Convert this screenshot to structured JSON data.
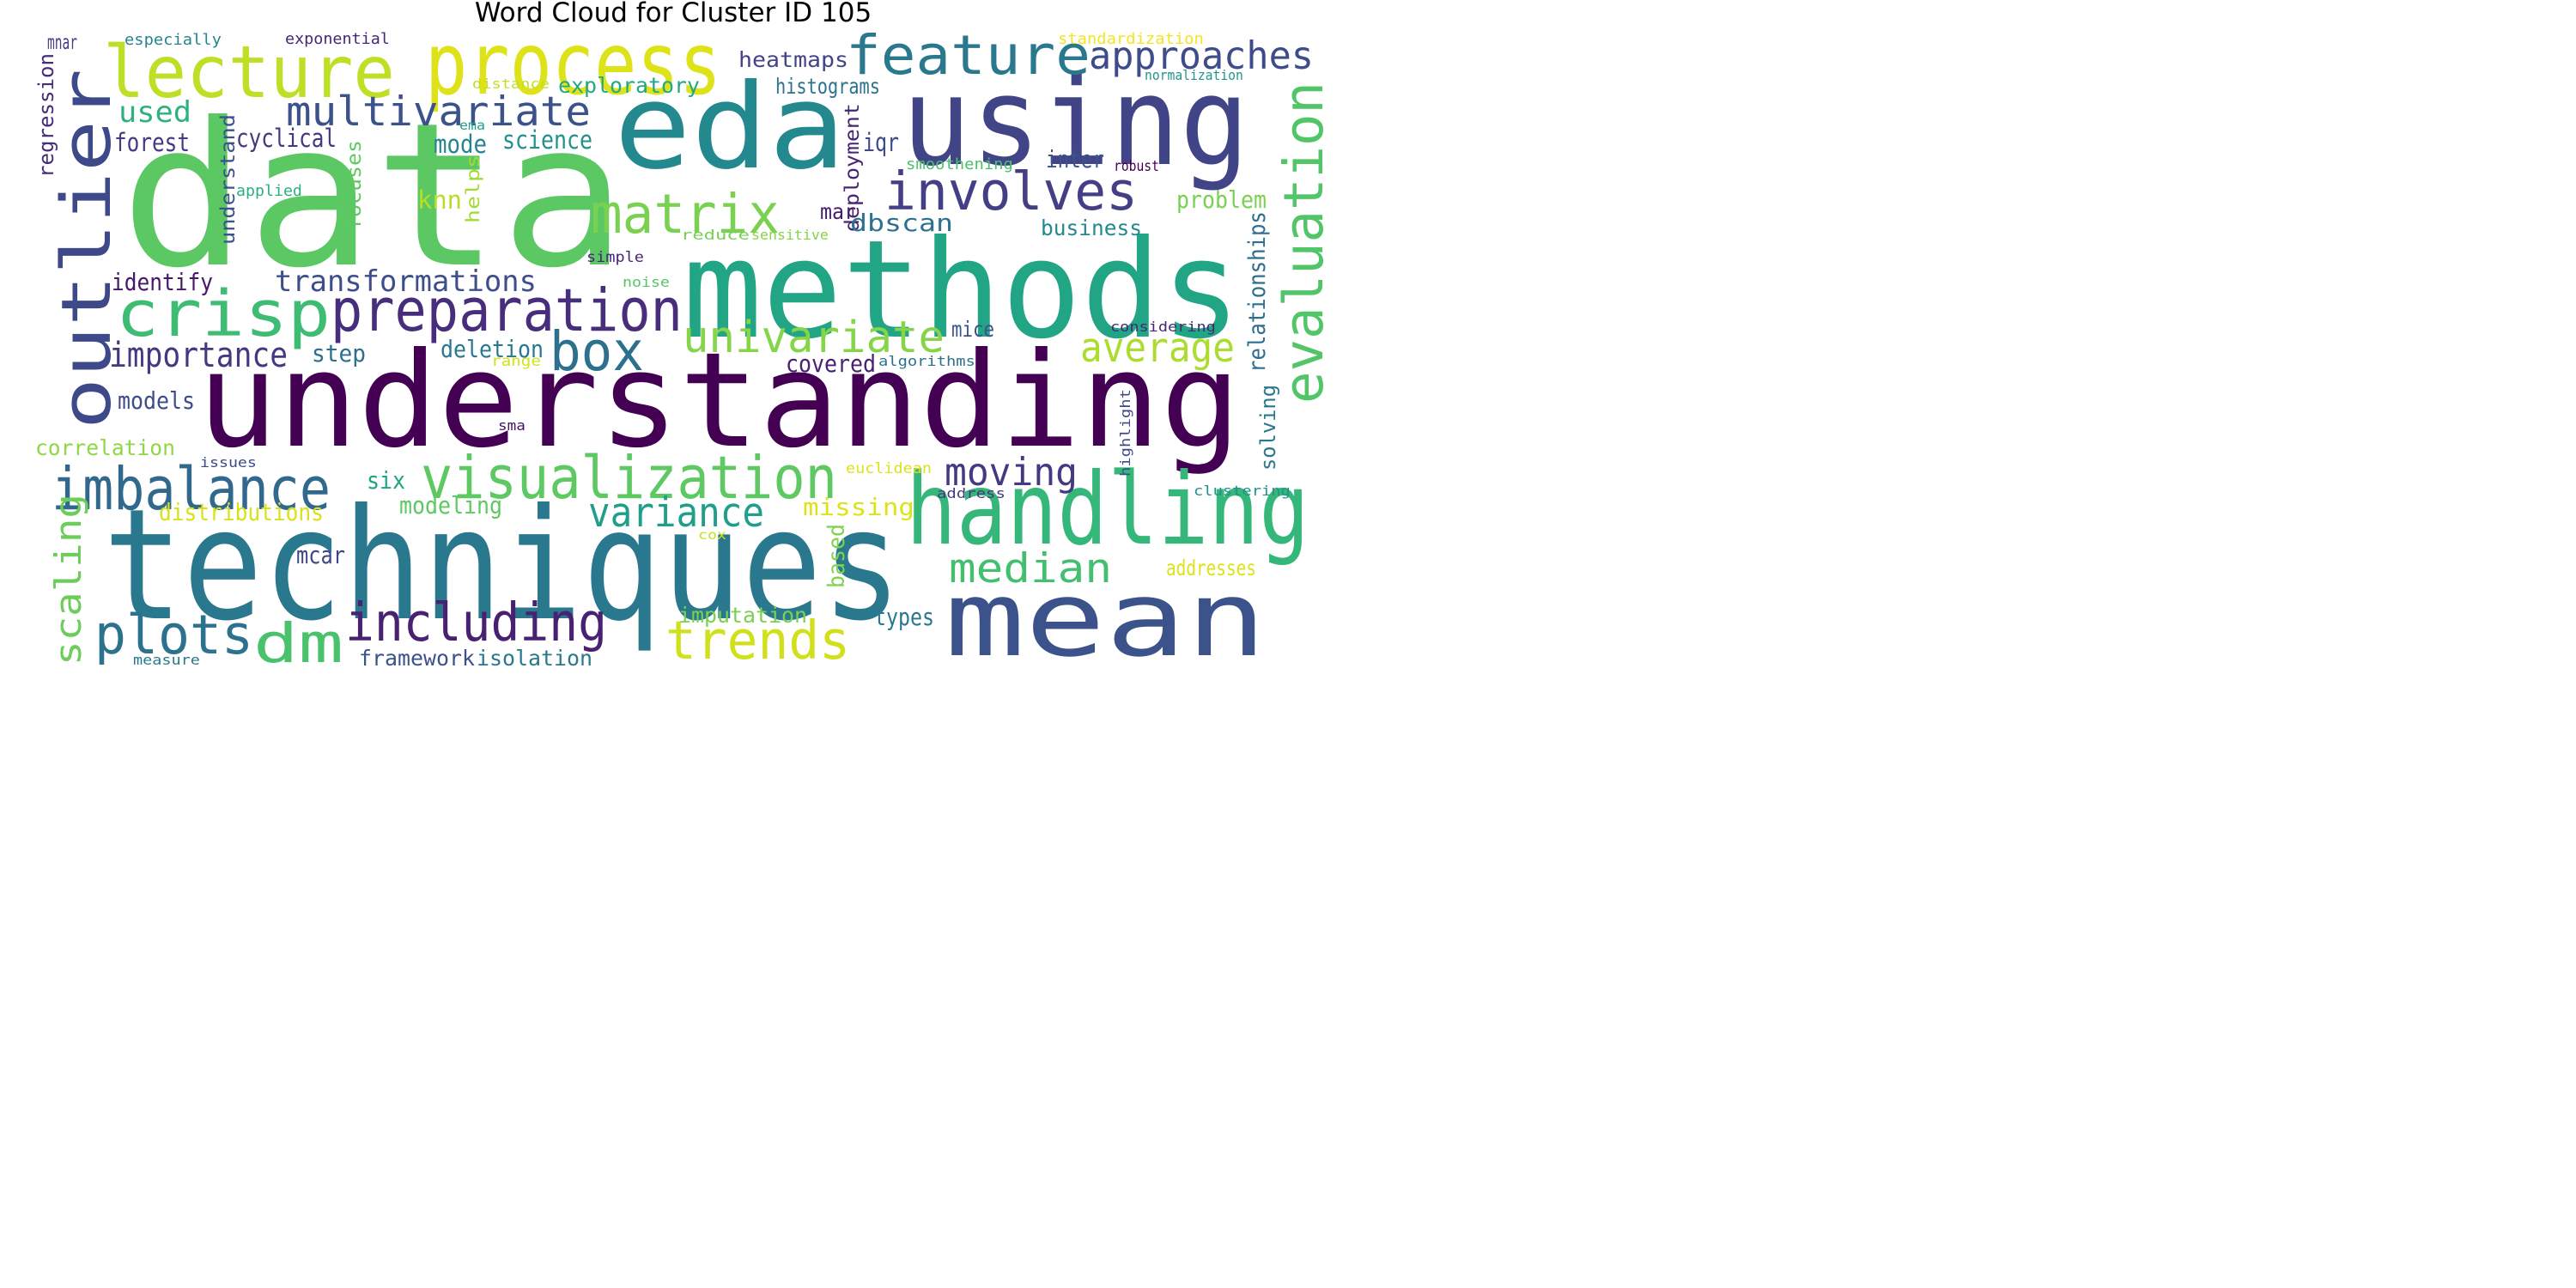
{
  "title": "Word Cloud for Cluster ID 105",
  "words": [
    {
      "text": "data",
      "color": "#5cc863"
    },
    {
      "text": "understanding",
      "color": "#440154"
    },
    {
      "text": "techniques",
      "color": "#2a788e"
    },
    {
      "text": "methods",
      "color": "#21a585"
    },
    {
      "text": "eda",
      "color": "#23898e"
    },
    {
      "text": "using",
      "color": "#414487"
    },
    {
      "text": "mean",
      "color": "#3b528b"
    },
    {
      "text": "outlier",
      "color": "#3e4989"
    },
    {
      "text": "handling",
      "color": "#35b779"
    },
    {
      "text": "process",
      "color": "#dde318"
    },
    {
      "text": "lecture",
      "color": "#bddf26"
    },
    {
      "text": "visualization",
      "color": "#5ec962"
    },
    {
      "text": "preparation",
      "color": "#472d7b"
    },
    {
      "text": "crisp",
      "color": "#3fbc73"
    },
    {
      "text": "evaluation",
      "color": "#52c569"
    },
    {
      "text": "imbalance",
      "color": "#31688e"
    },
    {
      "text": "including",
      "color": "#482173"
    },
    {
      "text": "feature",
      "color": "#2a788e"
    },
    {
      "text": "matrix",
      "color": "#7ad151"
    },
    {
      "text": "trends",
      "color": "#d0e11c"
    },
    {
      "text": "plots",
      "color": "#2c728e"
    },
    {
      "text": "dm",
      "color": "#4ac16d"
    },
    {
      "text": "involves",
      "color": "#433e85"
    },
    {
      "text": "univariate",
      "color": "#86d549"
    },
    {
      "text": "box",
      "color": "#2d708e"
    },
    {
      "text": "multivariate",
      "color": "#3b528b"
    },
    {
      "text": "approaches",
      "color": "#3e4c8a"
    },
    {
      "text": "median",
      "color": "#44bf70"
    },
    {
      "text": "variance",
      "color": "#1f9e89"
    },
    {
      "text": "average",
      "color": "#addc30"
    },
    {
      "text": "moving",
      "color": "#443983"
    },
    {
      "text": "scaling",
      "color": "#6ccd5a"
    },
    {
      "text": "transformations",
      "color": "#3d4e8a"
    },
    {
      "text": "importance",
      "color": "#453781"
    },
    {
      "text": "exploratory",
      "color": "#22a884"
    },
    {
      "text": "used",
      "color": "#2db27d"
    },
    {
      "text": "histograms",
      "color": "#2c728e"
    },
    {
      "text": "heatmaps",
      "color": "#414487"
    },
    {
      "text": "deployment",
      "color": "#482475"
    },
    {
      "text": "relationships",
      "color": "#2e6f8e"
    },
    {
      "text": "regression",
      "color": "#472c7a"
    },
    {
      "text": "understand",
      "color": "#3b528b"
    },
    {
      "text": "focuses",
      "color": "#5ec962"
    },
    {
      "text": "helps",
      "color": "#a2da37"
    },
    {
      "text": "cyclical",
      "color": "#453781"
    },
    {
      "text": "forest",
      "color": "#443983"
    },
    {
      "text": "mode",
      "color": "#25848e"
    },
    {
      "text": "science",
      "color": "#21918c"
    },
    {
      "text": "knn",
      "color": "#b5de2b"
    },
    {
      "text": "identify",
      "color": "#481769"
    },
    {
      "text": "step",
      "color": "#2d708e"
    },
    {
      "text": "deletion",
      "color": "#29798e"
    },
    {
      "text": "covered",
      "color": "#482173"
    },
    {
      "text": "dbscan",
      "color": "#2c728e"
    },
    {
      "text": "business",
      "color": "#23898e"
    },
    {
      "text": "problem",
      "color": "#7ad151"
    },
    {
      "text": "inter",
      "color": "#3b528b"
    },
    {
      "text": "iqr",
      "color": "#3e4989"
    },
    {
      "text": "mar",
      "color": "#481b6d"
    },
    {
      "text": "mice",
      "color": "#3b528b"
    },
    {
      "text": "solving",
      "color": "#2a788e"
    },
    {
      "text": "models",
      "color": "#3e4c8a"
    },
    {
      "text": "correlation",
      "color": "#8fd744"
    },
    {
      "text": "six",
      "color": "#20a386"
    },
    {
      "text": "distributions",
      "color": "#d8e219"
    },
    {
      "text": "modeling",
      "color": "#5ec962"
    },
    {
      "text": "missing",
      "color": "#dde318"
    },
    {
      "text": "mcar",
      "color": "#414487"
    },
    {
      "text": "based",
      "color": "#7fd34e"
    },
    {
      "text": "addresses",
      "color": "#dde318"
    },
    {
      "text": "imputation",
      "color": "#7ad151"
    },
    {
      "text": "types",
      "color": "#2a788e"
    },
    {
      "text": "framework",
      "color": "#3b528b"
    },
    {
      "text": "isolation",
      "color": "#2a788e"
    },
    {
      "text": "mnar",
      "color": "#433e85"
    },
    {
      "text": "especially",
      "color": "#25848e"
    },
    {
      "text": "exponential",
      "color": "#482677"
    },
    {
      "text": "standardization",
      "color": "#f4e61e"
    },
    {
      "text": "normalization",
      "color": "#1f968b"
    },
    {
      "text": "distance",
      "color": "#c2df23"
    },
    {
      "text": "ema",
      "color": "#1fa287"
    },
    {
      "text": "smoothening",
      "color": "#4ac16d"
    },
    {
      "text": "robust",
      "color": "#440154"
    },
    {
      "text": "applied",
      "color": "#2ab07f"
    },
    {
      "text": "reduce",
      "color": "#75d054"
    },
    {
      "text": "sensitive",
      "color": "#86d549"
    },
    {
      "text": "simple",
      "color": "#482576"
    },
    {
      "text": "noise",
      "color": "#56c667"
    },
    {
      "text": "considering",
      "color": "#482878"
    },
    {
      "text": "range",
      "color": "#d2e21b"
    },
    {
      "text": "algorithms",
      "color": "#2c728e"
    },
    {
      "text": "highlight",
      "color": "#3e4a89"
    },
    {
      "text": "sma",
      "color": "#481467"
    },
    {
      "text": "issues",
      "color": "#3e4a89"
    },
    {
      "text": "euclidean",
      "color": "#dde318"
    },
    {
      "text": "address",
      "color": "#443a83"
    },
    {
      "text": "clustering",
      "color": "#21918c"
    },
    {
      "text": "cox",
      "color": "#c8e020"
    },
    {
      "text": "measure",
      "color": "#2a788e"
    },
    {
      "text": "log",
      "color": "#3b528b"
    }
  ]
}
